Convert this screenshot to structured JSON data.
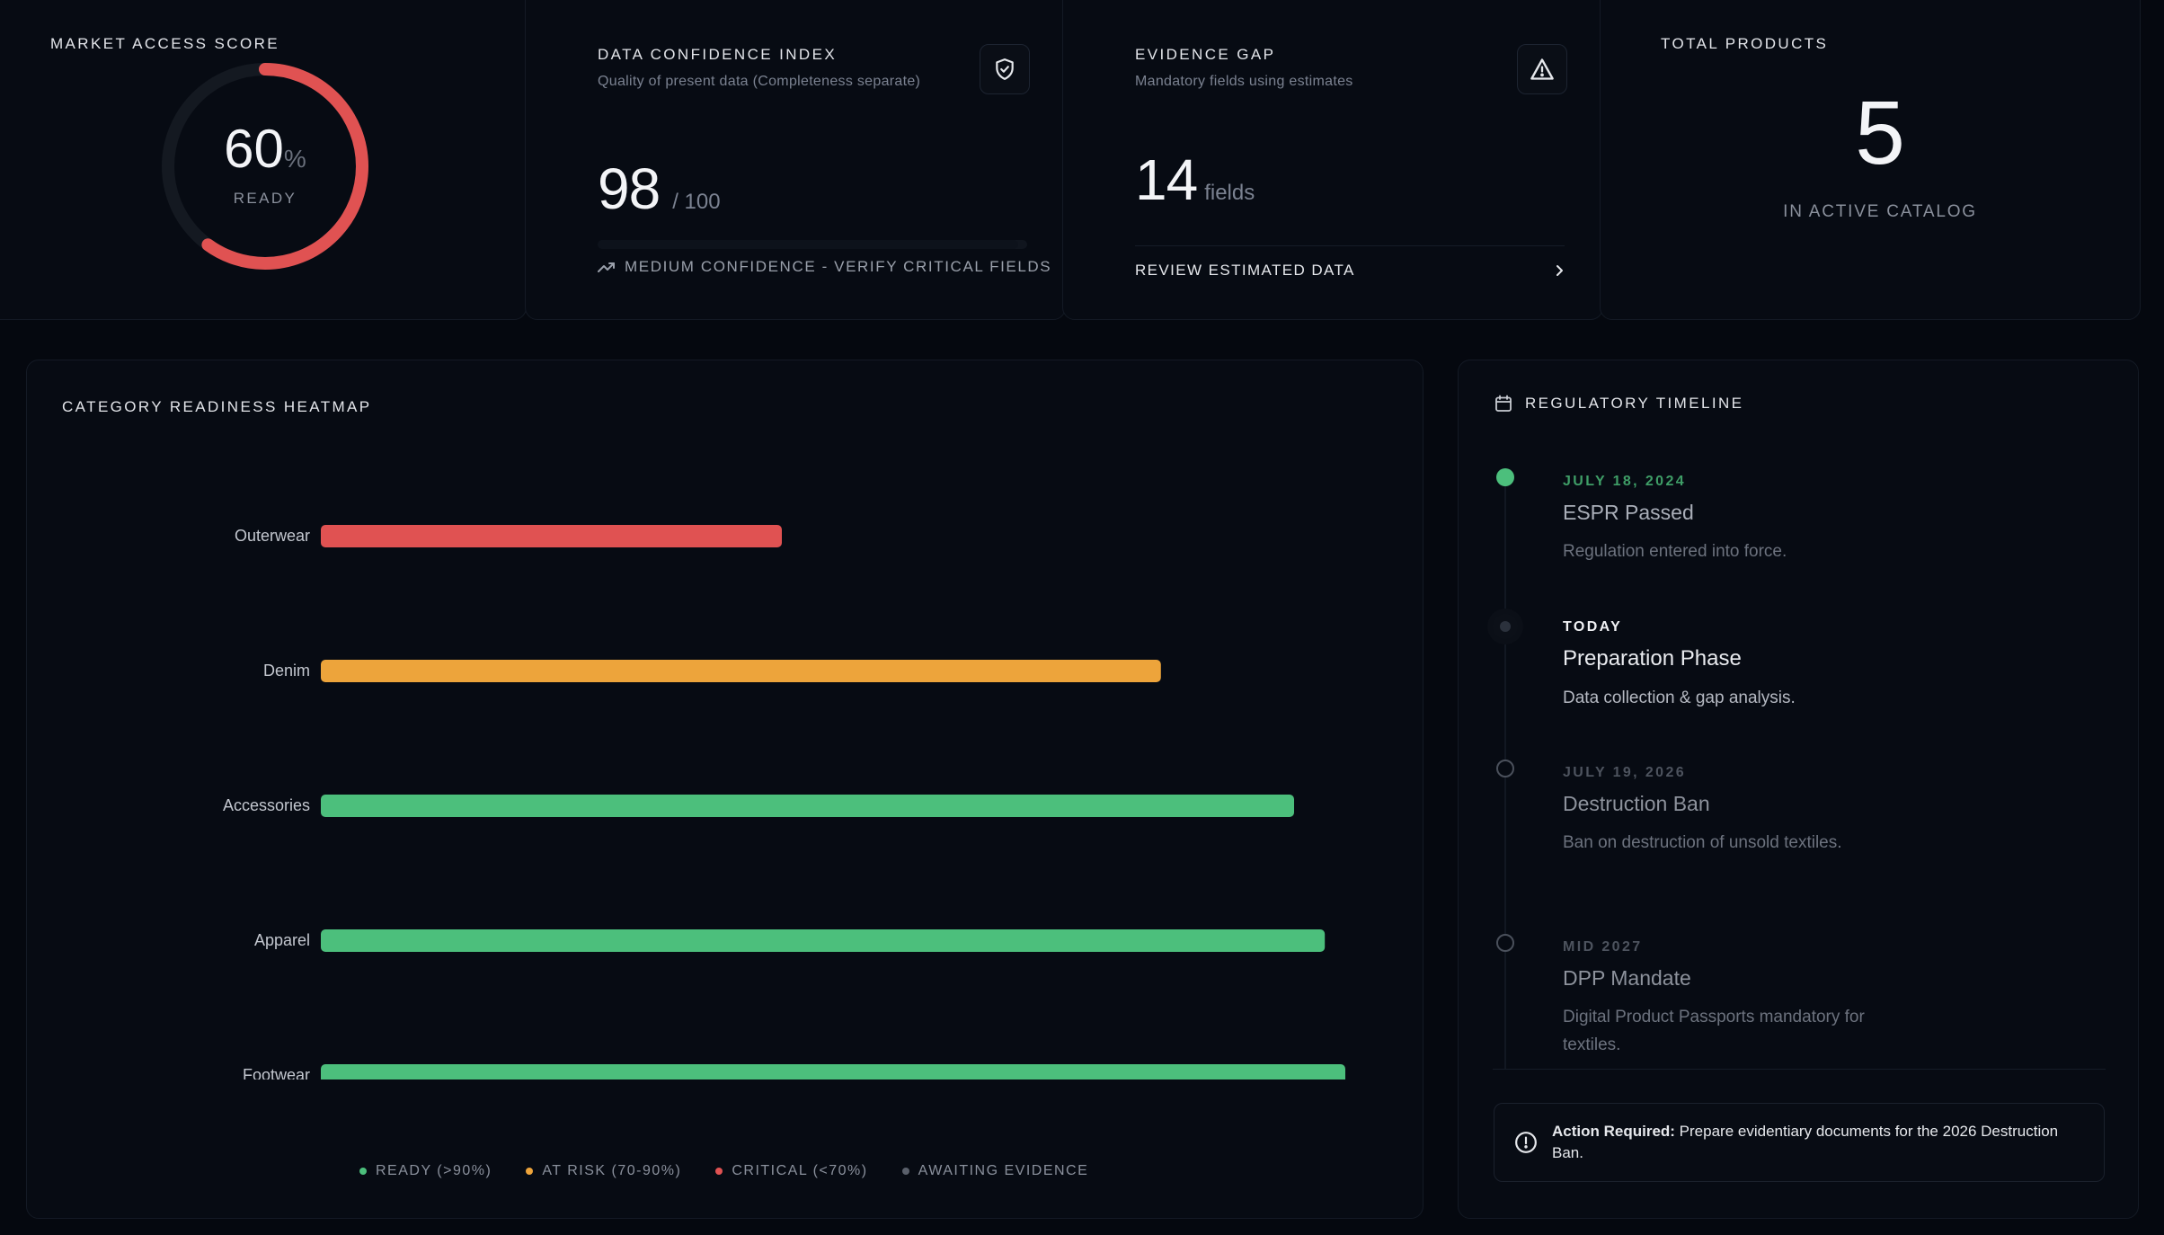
{
  "market_access": {
    "title": "MARKET ACCESS SCORE",
    "score": 60,
    "score_text": "60",
    "unit": "%",
    "status": "READY",
    "ring_color": "#e05252"
  },
  "data_confidence": {
    "title": "DATA CONFIDENCE INDEX",
    "subtitle": "Quality of present data (Completeness separate)",
    "value": "98",
    "out_of": "/ 100",
    "note": "MEDIUM CONFIDENCE - VERIFY CRITICAL FIELDS",
    "icon": "shield-check-icon",
    "fill_fraction": 0.98
  },
  "evidence_gap": {
    "title": "EVIDENCE GAP",
    "subtitle": "Mandatory fields using estimates",
    "value": "14",
    "unit": "fields",
    "action": "REVIEW ESTIMATED DATA",
    "icon": "warning-triangle-icon"
  },
  "total_products": {
    "title": "TOTAL PRODUCTS",
    "value": "5",
    "caption": "IN ACTIVE CATALOG"
  },
  "heatmap": {
    "title": "CATEGORY READINESS HEATMAP",
    "legend": [
      {
        "label": "READY (>90%)",
        "color": "#4cbf7c"
      },
      {
        "label": "AT RISK (70-90%)",
        "color": "#eda43b"
      },
      {
        "label": "CRITICAL (<70%)",
        "color": "#e05252"
      },
      {
        "label": "AWAITING EVIDENCE",
        "color": "#5a606b"
      }
    ]
  },
  "chart_data": {
    "type": "bar",
    "orientation": "horizontal",
    "categories": [
      "Outerwear",
      "Denim",
      "Accessories",
      "Apparel",
      "Footwear"
    ],
    "values": [
      45,
      82,
      95,
      98,
      100
    ],
    "colors": [
      "#e05252",
      "#eda43b",
      "#4cbf7c",
      "#4cbf7c",
      "#4cbf7c"
    ],
    "xlim": [
      0,
      100
    ],
    "grid": false,
    "legend_position": "bottom"
  },
  "timeline": {
    "title": "REGULATORY TIMELINE",
    "icon": "calendar-icon",
    "items": [
      {
        "date": "JULY 18, 2024",
        "title": "ESPR Passed",
        "desc": "Regulation entered into force.",
        "state": "done"
      },
      {
        "date": "TODAY",
        "title": "Preparation Phase",
        "desc": "Data collection & gap analysis.",
        "state": "current"
      },
      {
        "date": "JULY 19, 2026",
        "title": "Destruction Ban",
        "desc": "Ban on destruction of unsold textiles.",
        "state": "upcoming"
      },
      {
        "date": "MID 2027",
        "title": "DPP Mandate",
        "desc": "Digital Product Passports mandatory for textiles.",
        "state": "upcoming"
      }
    ],
    "alert_strong": "Action Required:",
    "alert_text": " Prepare evidentiary documents for the 2026 Destruction Ban.",
    "alert_icon": "alert-circle-icon"
  }
}
